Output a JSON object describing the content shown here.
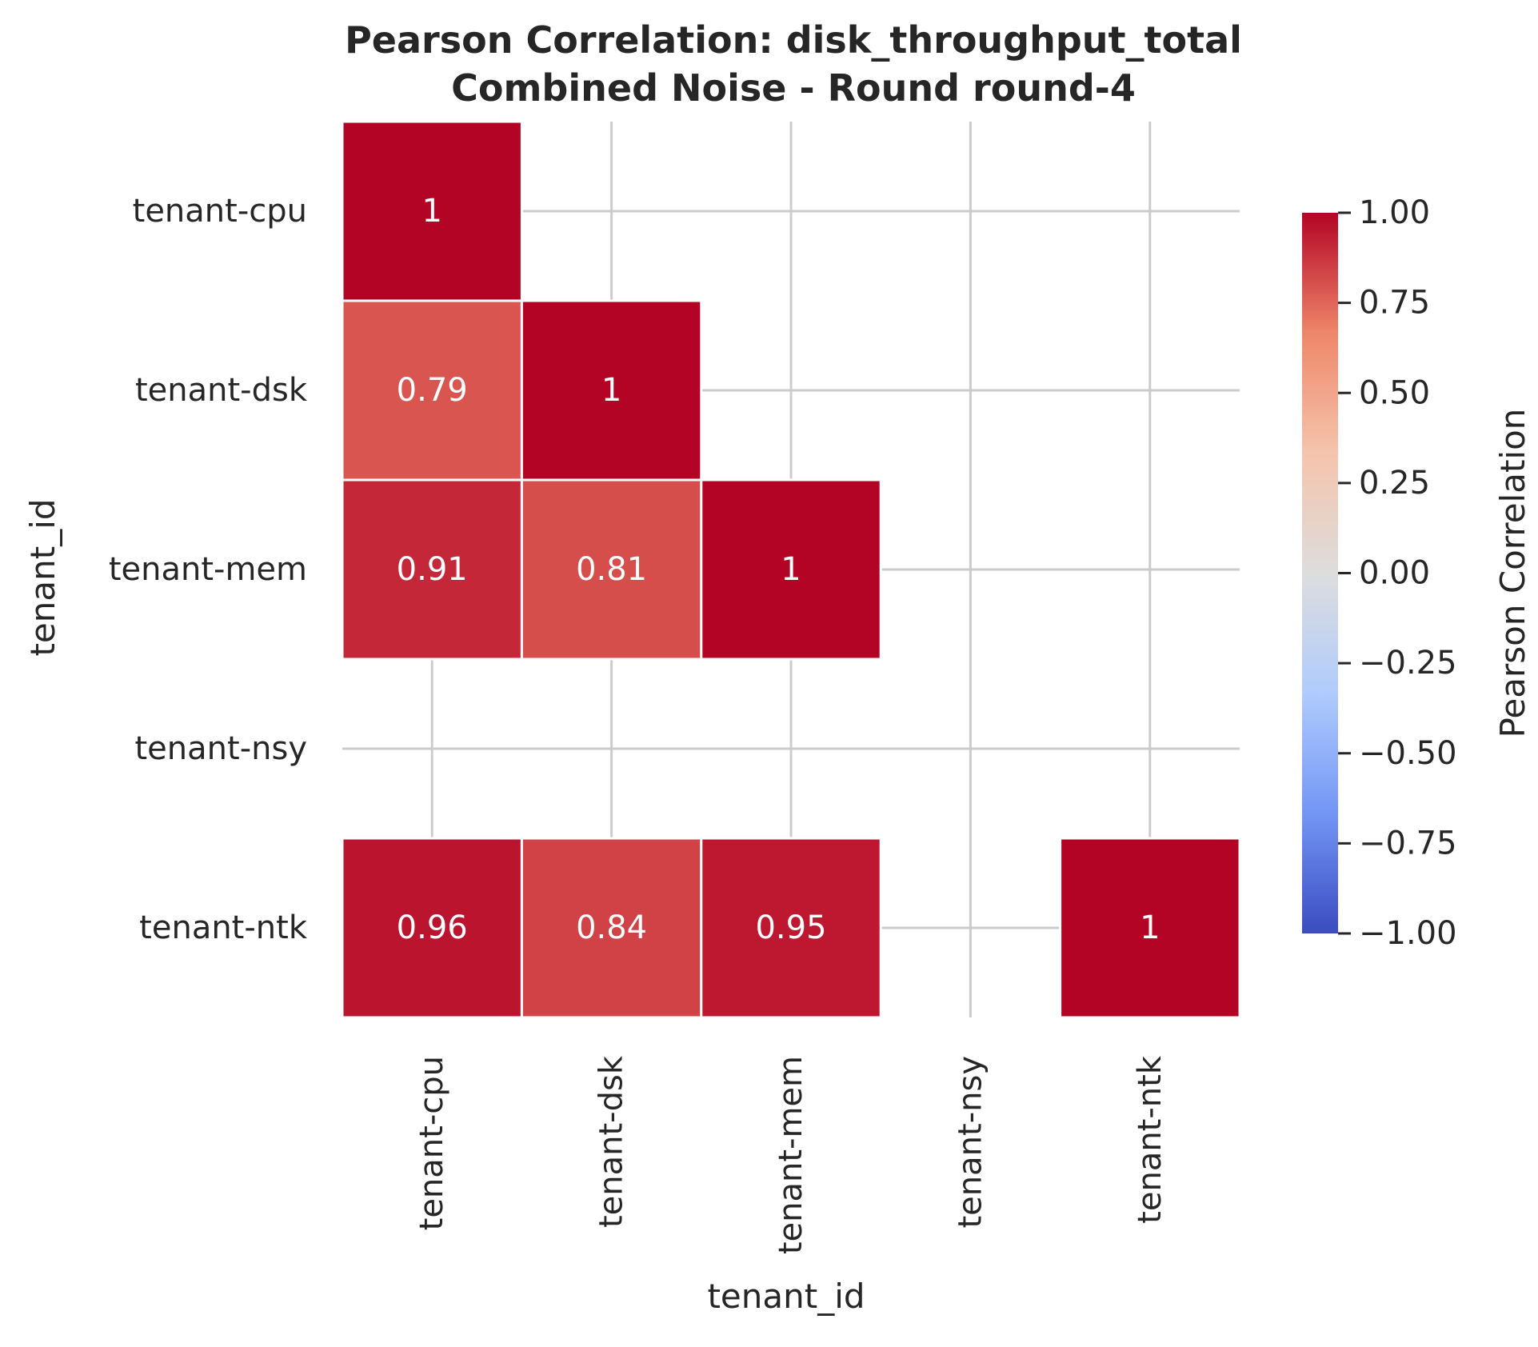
{
  "chart_data": {
    "type": "heatmap",
    "title_lines": [
      "Pearson Correlation: disk_throughput_total",
      "Combined Noise - Round round-4"
    ],
    "xlabel": "tenant_id",
    "ylabel": "tenant_id",
    "x_categories": [
      "tenant-cpu",
      "tenant-dsk",
      "tenant-mem",
      "tenant-nsy",
      "tenant-ntk"
    ],
    "y_categories": [
      "tenant-cpu",
      "tenant-dsk",
      "tenant-mem",
      "tenant-nsy",
      "tenant-ntk"
    ],
    "matrix": [
      [
        1,
        null,
        null,
        null,
        null
      ],
      [
        0.79,
        1,
        null,
        null,
        null
      ],
      [
        0.91,
        0.81,
        1,
        null,
        null
      ],
      [
        null,
        null,
        null,
        null,
        null
      ],
      [
        0.96,
        0.84,
        0.95,
        null,
        1
      ]
    ],
    "cell_labels": [
      [
        "1",
        "",
        "",
        "",
        ""
      ],
      [
        "0.79",
        "1",
        "",
        "",
        ""
      ],
      [
        "0.91",
        "0.81",
        "1",
        "",
        ""
      ],
      [
        "",
        "",
        "",
        "",
        ""
      ],
      [
        "0.96",
        "0.84",
        "0.95",
        "",
        "1"
      ]
    ],
    "colorbar": {
      "label": "Pearson Correlation",
      "range": [
        -1.0,
        1.0
      ],
      "ticks": [
        1.0,
        0.75,
        0.5,
        0.25,
        0.0,
        -0.25,
        -0.5,
        -0.75,
        -1.0
      ],
      "tick_labels": [
        "1.00",
        "0.75",
        "0.50",
        "0.25",
        "0.00",
        "−0.25",
        "−0.50",
        "−0.75",
        "−1.00"
      ],
      "colormap": "coolwarm",
      "stops": [
        "#3b4cc0",
        "#7396f5",
        "#b0cbfc",
        "#dddddd",
        "#f5c4ad",
        "#ee8669",
        "#b40426"
      ]
    },
    "grid": true,
    "colors": {
      "grid": "#cccccc",
      "text": "#262626",
      "cell_border": "#ffffff"
    }
  }
}
